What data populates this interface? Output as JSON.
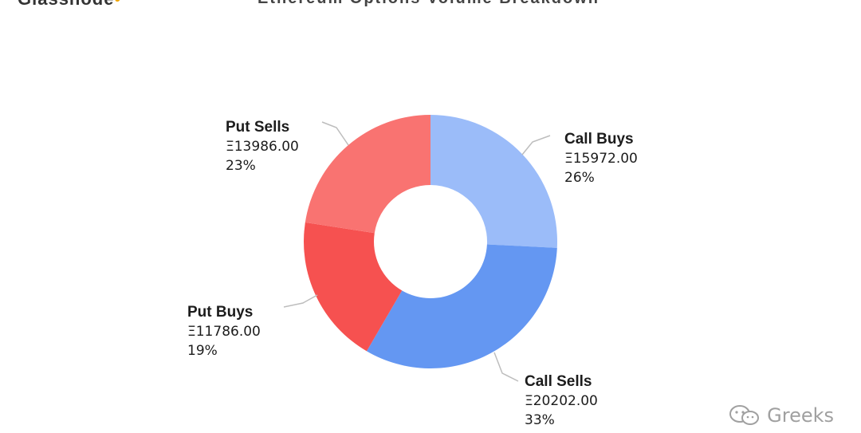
{
  "header": {
    "logo_text": "Glassnode",
    "logo_dot": "•",
    "title": "Ethereum Options Volume Breakdown"
  },
  "watermark": {
    "icon": "wechat-icon",
    "text": "Greeks"
  },
  "chart_data": {
    "type": "pie",
    "variant": "donut",
    "currency_symbol": "Ξ",
    "slices": [
      {
        "label": "Call Buys",
        "value": 15972.0,
        "value_text": "Ξ15972.00",
        "percent_text": "26%",
        "color": "#9bbcf9"
      },
      {
        "label": "Call Sells",
        "value": 20202.0,
        "value_text": "Ξ20202.00",
        "percent_text": "33%",
        "color": "#6497f2"
      },
      {
        "label": "Put Buys",
        "value": 11786.0,
        "value_text": "Ξ11786.00",
        "percent_text": "19%",
        "color": "#f65150"
      },
      {
        "label": "Put Sells",
        "value": 13986.0,
        "value_text": "Ξ13986.00",
        "percent_text": "23%",
        "color": "#f97371"
      }
    ],
    "start_angle_deg": 0,
    "direction": "clockwise"
  }
}
